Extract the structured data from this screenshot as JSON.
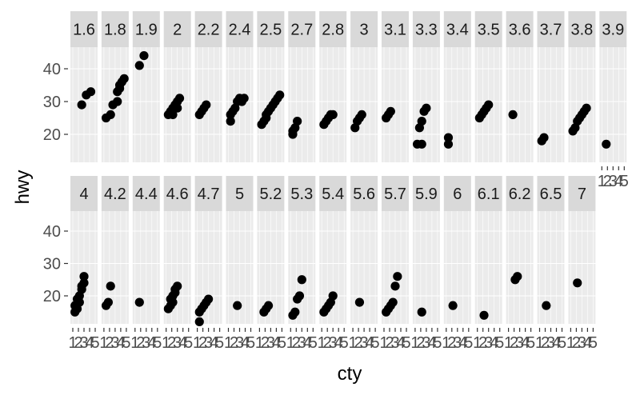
{
  "chart_data": {
    "type": "scatter",
    "xlabel": "cty",
    "ylabel": "hwy",
    "y_ticks": [
      "20",
      "30",
      "40"
    ],
    "x_tick_labels": [
      "1",
      "2",
      "3",
      "4",
      "5"
    ],
    "facet_rows": [
      [
        "1.6",
        "1.8",
        "1.9",
        "2",
        "2.2",
        "2.4",
        "2.5",
        "2.7",
        "2.8",
        "3",
        "3.1",
        "3.3",
        "3.4",
        "3.5",
        "3.6",
        "3.7",
        "3.8",
        "3.9"
      ],
      [
        "4",
        "4.2",
        "4.4",
        "4.6",
        "4.7",
        "5",
        "5.2",
        "5.3",
        "5.4",
        "5.6",
        "5.7",
        "5.9",
        "6",
        "6.1",
        "6.2",
        "6.5",
        "7"
      ]
    ],
    "grid": true,
    "colors": {
      "panel": "#ebebeb",
      "strip": "#d9d9d9",
      "point": "#000000"
    },
    "points": {
      "1.6": [
        [
          1.3,
          29
        ],
        [
          1.5,
          32
        ],
        [
          1.7,
          33
        ]
      ],
      "1.8": [
        [
          1.0,
          25
        ],
        [
          1.2,
          26
        ],
        [
          1.3,
          29
        ],
        [
          1.5,
          30
        ],
        [
          1.5,
          33
        ],
        [
          1.6,
          34
        ],
        [
          1.6,
          35
        ],
        [
          1.7,
          36
        ],
        [
          1.8,
          37
        ]
      ],
      "1.9": [
        [
          1.1,
          41
        ],
        [
          1.3,
          44
        ]
      ],
      "2": [
        [
          1.0,
          26
        ],
        [
          1.1,
          27
        ],
        [
          1.2,
          28
        ],
        [
          1.3,
          29
        ],
        [
          1.4,
          30
        ],
        [
          1.5,
          31
        ],
        [
          1.2,
          26
        ],
        [
          1.4,
          28
        ]
      ],
      "2.2": [
        [
          1.0,
          26
        ],
        [
          1.1,
          27
        ],
        [
          1.2,
          28
        ],
        [
          1.3,
          29
        ]
      ],
      "2.4": [
        [
          1.0,
          24
        ],
        [
          1.0,
          26
        ],
        [
          1.1,
          27
        ],
        [
          1.2,
          28
        ],
        [
          1.3,
          30
        ],
        [
          1.4,
          31
        ],
        [
          1.5,
          30
        ],
        [
          1.6,
          31
        ]
      ],
      "2.5": [
        [
          1.0,
          23
        ],
        [
          1.1,
          24
        ],
        [
          1.2,
          25
        ],
        [
          1.2,
          26
        ],
        [
          1.3,
          27
        ],
        [
          1.4,
          28
        ],
        [
          1.5,
          29
        ],
        [
          1.6,
          30
        ],
        [
          1.7,
          31
        ],
        [
          1.8,
          32
        ]
      ],
      "2.7": [
        [
          1.0,
          20
        ],
        [
          1.0,
          21
        ],
        [
          1.1,
          22
        ],
        [
          1.2,
          24
        ]
      ],
      "2.8": [
        [
          1.0,
          23
        ],
        [
          1.1,
          24
        ],
        [
          1.2,
          25
        ],
        [
          1.3,
          26
        ],
        [
          1.4,
          26
        ]
      ],
      "3": [
        [
          1.0,
          22
        ],
        [
          1.1,
          24
        ],
        [
          1.2,
          25
        ],
        [
          1.3,
          26
        ]
      ],
      "3.1": [
        [
          1.0,
          25
        ],
        [
          1.1,
          26
        ],
        [
          1.2,
          27
        ]
      ],
      "3.3": [
        [
          1.0,
          17
        ],
        [
          1.2,
          17
        ],
        [
          1.1,
          22
        ],
        [
          1.2,
          24
        ],
        [
          1.3,
          27
        ],
        [
          1.4,
          28
        ]
      ],
      "3.4": [
        [
          1.0,
          17
        ],
        [
          1.0,
          19
        ]
      ],
      "3.5": [
        [
          1.0,
          25
        ],
        [
          1.1,
          26
        ],
        [
          1.2,
          27
        ],
        [
          1.3,
          28
        ],
        [
          1.4,
          29
        ]
      ],
      "3.6": [
        [
          1.1,
          26
        ]
      ],
      "3.7": [
        [
          1.0,
          18
        ],
        [
          1.1,
          19
        ]
      ],
      "3.8": [
        [
          1.0,
          21
        ],
        [
          1.1,
          22
        ],
        [
          1.2,
          24
        ],
        [
          1.3,
          25
        ],
        [
          1.4,
          26
        ],
        [
          1.5,
          27
        ],
        [
          1.6,
          28
        ]
      ],
      "3.9": [
        [
          1.1,
          17
        ]
      ],
      "4": [
        [
          1.0,
          15
        ],
        [
          1.1,
          16
        ],
        [
          1.0,
          17
        ],
        [
          1.2,
          18
        ],
        [
          1.1,
          19
        ],
        [
          1.2,
          20
        ],
        [
          1.3,
          22
        ],
        [
          1.3,
          23
        ],
        [
          1.4,
          24
        ],
        [
          1.4,
          26
        ]
      ],
      "4.2": [
        [
          1.0,
          17
        ],
        [
          1.1,
          18
        ],
        [
          1.2,
          23
        ]
      ],
      "4.4": [
        [
          1.1,
          18
        ]
      ],
      "4.6": [
        [
          1.0,
          16
        ],
        [
          1.1,
          17
        ],
        [
          1.2,
          18
        ],
        [
          1.1,
          19
        ],
        [
          1.2,
          20
        ],
        [
          1.3,
          21
        ],
        [
          1.3,
          22
        ],
        [
          1.4,
          23
        ]
      ],
      "4.7": [
        [
          1.0,
          12
        ],
        [
          1.0,
          15
        ],
        [
          1.1,
          16
        ],
        [
          1.2,
          17
        ],
        [
          1.3,
          18
        ],
        [
          1.4,
          19
        ]
      ],
      "5": [
        [
          1.3,
          17
        ]
      ],
      "5.2": [
        [
          1.1,
          15
        ],
        [
          1.2,
          16
        ],
        [
          1.3,
          17
        ]
      ],
      "5.3": [
        [
          1.0,
          14
        ],
        [
          1.1,
          15
        ],
        [
          1.2,
          19
        ],
        [
          1.3,
          20
        ],
        [
          1.4,
          25
        ]
      ],
      "5.4": [
        [
          1.0,
          15
        ],
        [
          1.1,
          16
        ],
        [
          1.2,
          17
        ],
        [
          1.3,
          18
        ],
        [
          1.4,
          20
        ]
      ],
      "5.6": [
        [
          1.2,
          18
        ]
      ],
      "5.7": [
        [
          1.0,
          15
        ],
        [
          1.1,
          16
        ],
        [
          1.2,
          17
        ],
        [
          1.3,
          18
        ],
        [
          1.4,
          23
        ],
        [
          1.5,
          26
        ]
      ],
      "5.9": [
        [
          1.2,
          15
        ]
      ],
      "6": [
        [
          1.2,
          17
        ]
      ],
      "6.1": [
        [
          1.2,
          14
        ]
      ],
      "6.2": [
        [
          1.2,
          25
        ],
        [
          1.3,
          26
        ]
      ],
      "6.5": [
        [
          1.2,
          17
        ]
      ],
      "7": [
        [
          1.2,
          24
        ]
      ]
    }
  }
}
